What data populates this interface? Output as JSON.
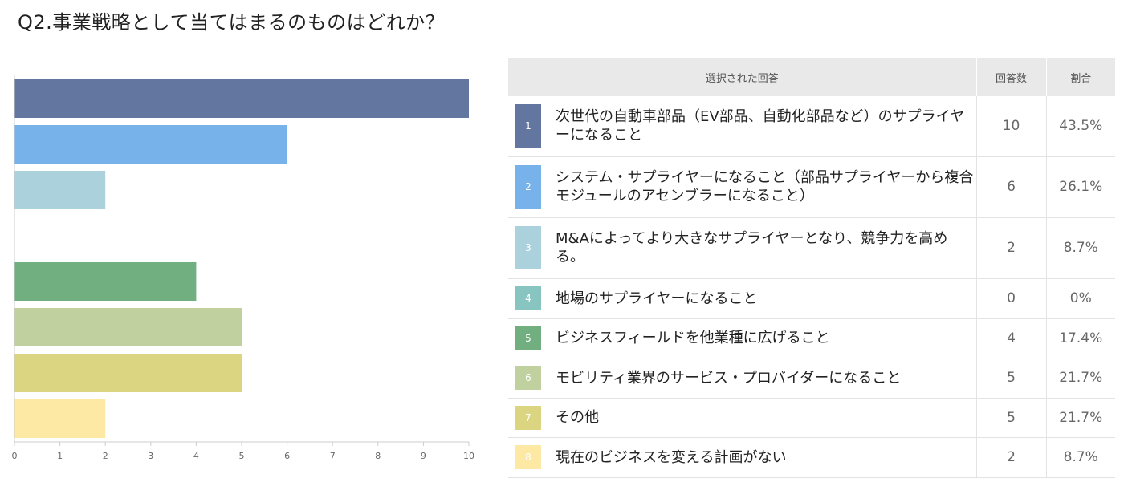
{
  "title": "Q2.事業戦略として当てはまるのものはどれか？",
  "table": {
    "headers": {
      "answer": "選択された回答",
      "count": "回答数",
      "pct": "割合"
    },
    "rows": [
      {
        "num": "1",
        "text": "次世代の自動車部品（EV部品、自動化部品など）のサプライヤーになること",
        "count": "10",
        "pct": "43.5%",
        "color": "#63769f"
      },
      {
        "num": "2",
        "text": "システム・サプライヤーになること（部品サプライヤーから複合モジュールのアセンブラーになること）",
        "count": "6",
        "pct": "26.1%",
        "color": "#77b2eb"
      },
      {
        "num": "3",
        "text": "M&Aによってより大きなサプライヤーとなり、競争力を高める。",
        "count": "2",
        "pct": "8.7%",
        "color": "#abd1dd"
      },
      {
        "num": "4",
        "text": "地場のサプライヤーになること",
        "count": "0",
        "pct": "0%",
        "color": "#88c5c0"
      },
      {
        "num": "5",
        "text": "ビジネスフィールドを他業種に広げること",
        "count": "4",
        "pct": "17.4%",
        "color": "#71ae80"
      },
      {
        "num": "6",
        "text": "モビリティ業界のサービス・プロバイダーになること",
        "count": "5",
        "pct": "21.7%",
        "color": "#c0d09e"
      },
      {
        "num": "7",
        "text": "その他",
        "count": "5",
        "pct": "21.7%",
        "color": "#dbd582"
      },
      {
        "num": "8",
        "text": "現在のビジネスを変える計画がない",
        "count": "2",
        "pct": "8.7%",
        "color": "#fde9a4"
      }
    ]
  },
  "chart_data": {
    "type": "bar",
    "orientation": "horizontal",
    "categories": [
      "1",
      "2",
      "3",
      "4",
      "5",
      "6",
      "7",
      "8"
    ],
    "values": [
      10,
      6,
      2,
      0,
      4,
      5,
      5,
      2
    ],
    "colors": [
      "#63769f",
      "#77b2eb",
      "#abd1dd",
      "#88c5c0",
      "#71ae80",
      "#c0d09e",
      "#dbd582",
      "#fde9a4"
    ],
    "xlim": [
      0,
      10
    ],
    "xticks": [
      0,
      1,
      2,
      3,
      4,
      5,
      6,
      7,
      8,
      9,
      10
    ],
    "grid": false
  }
}
